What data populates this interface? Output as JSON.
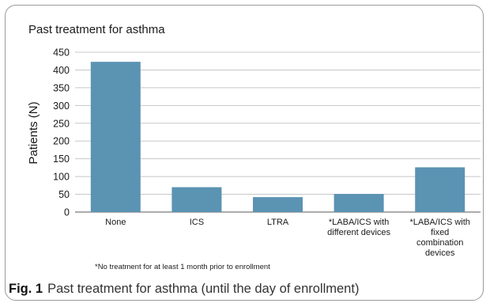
{
  "chart_data": {
    "type": "bar",
    "title": "Past treatment for asthma",
    "ylabel": "Patients (N)",
    "xlabel": "",
    "categories": [
      [
        "None"
      ],
      [
        "ICS"
      ],
      [
        "LTRA"
      ],
      [
        "*LABA/ICS with",
        "different devices"
      ],
      [
        "*LABA/ICS with",
        "fixed",
        "combination",
        "devices"
      ]
    ],
    "values": [
      423,
      70,
      42,
      51,
      126
    ],
    "ylim": [
      0,
      450
    ],
    "yticks": [
      0,
      50,
      100,
      150,
      200,
      250,
      300,
      350,
      400,
      450
    ],
    "grid": true,
    "bar_color": "#5b93b3",
    "footnote": "*No treatment for at least 1 month prior to enrollment"
  },
  "caption": {
    "label": "Fig. 1",
    "text": "Past treatment for asthma (until the day of enrollment)"
  }
}
